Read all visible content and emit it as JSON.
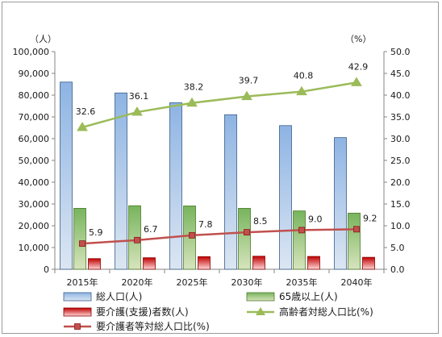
{
  "chart_data": {
    "type": "bar",
    "categories": [
      "2015年",
      "2020年",
      "2025年",
      "2030年",
      "2035年",
      "2040年"
    ],
    "y_left": {
      "unit": "（人）",
      "ylim": [
        0,
        100000
      ],
      "ticks": [
        "0",
        "10,000",
        "20,000",
        "30,000",
        "40,000",
        "50,000",
        "60,000",
        "70,000",
        "80,000",
        "90,000",
        "100,000"
      ]
    },
    "y_right": {
      "unit": "（%）",
      "ylim": [
        0,
        50
      ],
      "ticks": [
        "0.0",
        "5.0",
        "10.0",
        "15.0",
        "20.0",
        "25.0",
        "30.0",
        "35.0",
        "40.0",
        "45.0",
        "50.0"
      ]
    },
    "bar_series": [
      {
        "name": "総人口(人)",
        "values": [
          86000,
          81000,
          76500,
          71000,
          66000,
          60500
        ],
        "color_top": "#8eb4e3",
        "color_bottom": "#dce6f2",
        "border": "#385d8a"
      },
      {
        "name": "65歳以上(人)",
        "values": [
          28000,
          29200,
          29100,
          28000,
          26800,
          25800
        ],
        "color_top": "#77b45c",
        "color_bottom": "#d7e4bd",
        "border": "#4f7a28"
      },
      {
        "name": "要介護(支援)者数(人)",
        "values": [
          4900,
          5300,
          5800,
          6000,
          5900,
          5500
        ],
        "color_top": "#c00000",
        "color_bottom": "#ffd7d7",
        "border": "#8b0000"
      }
    ],
    "line_series": [
      {
        "name": "高齢者対総人口比(%)",
        "values": [
          32.6,
          36.1,
          38.2,
          39.7,
          40.8,
          42.9
        ],
        "labels": [
          "32.6",
          "36.1",
          "38.2",
          "39.7",
          "40.8",
          "42.9"
        ],
        "color": "#9bbb59",
        "marker": "triangle"
      },
      {
        "name": "要介護者等対総人口比(%)",
        "values": [
          5.9,
          6.7,
          7.8,
          8.5,
          9.0,
          9.2
        ],
        "labels": [
          "5.9",
          "6.7",
          "7.8",
          "8.5",
          "9.0",
          "9.2"
        ],
        "color": "#c0504d",
        "marker": "square"
      }
    ],
    "legend": {
      "placement": "bottom"
    },
    "grid": false
  }
}
